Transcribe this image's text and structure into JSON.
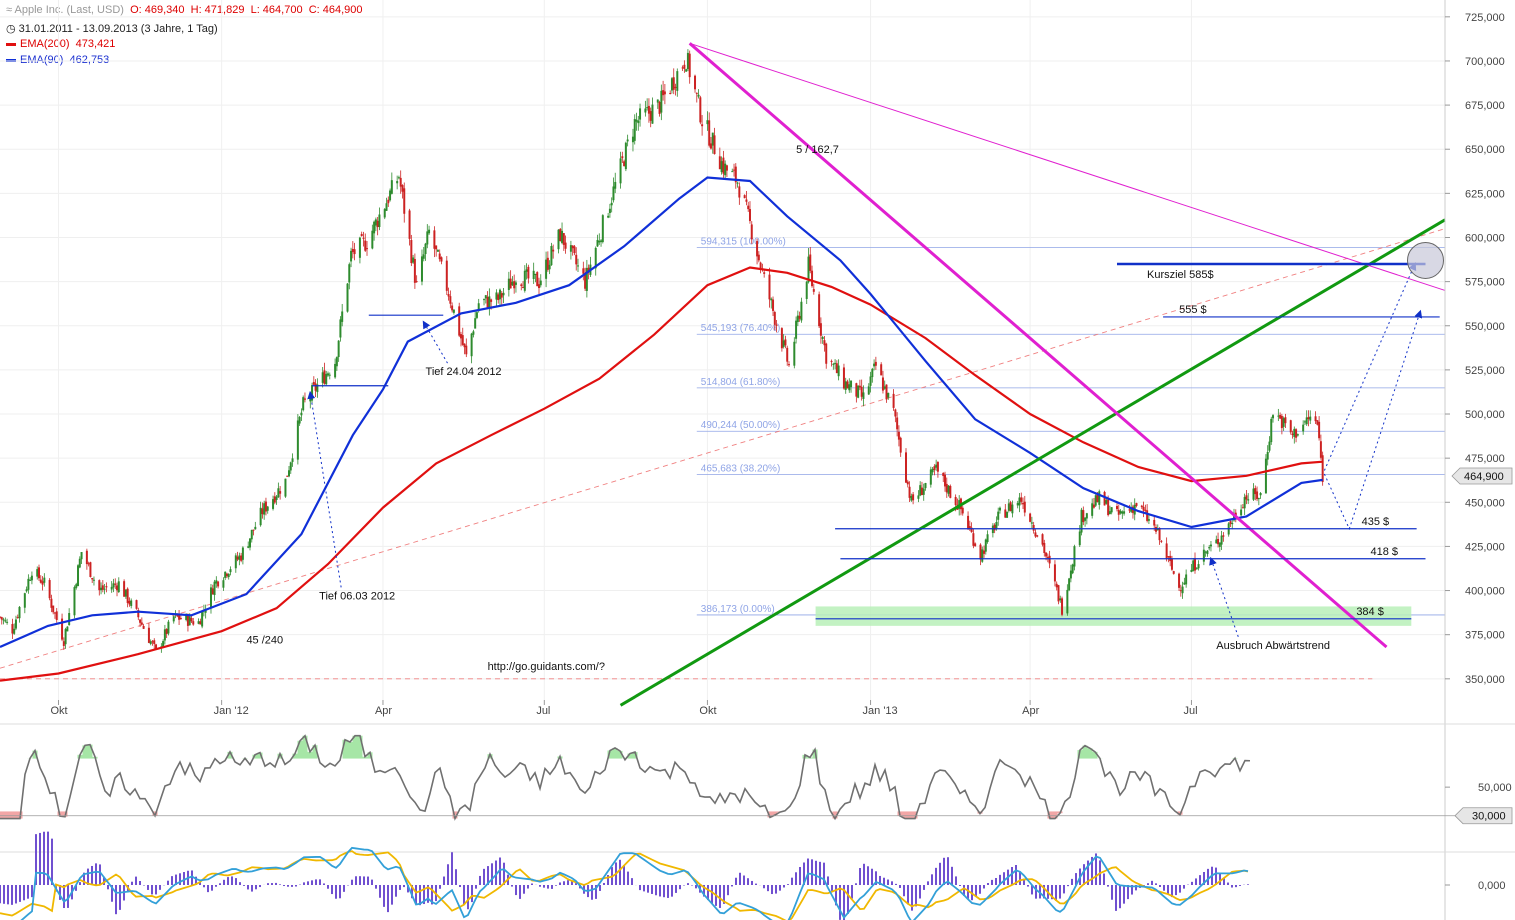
{
  "header": {
    "instrument": "Apple Inc. (Last, USD)",
    "open": "O: 469,340",
    "high": "H: 471,829",
    "low": "L: 464,700",
    "close": "C: 464,900",
    "period": "31.01.2011 - 13.09.2013 (3 Jahre, 1 Tag)",
    "ema200_label": "EMA(200)",
    "ema200_value": "473,421",
    "ema90_label": "EMA(90)",
    "ema90_value": "462,753"
  },
  "colors": {
    "candle_up": "#2e8b2e",
    "candle_down": "#cc2222",
    "ema200": "#e01010",
    "ema90": "#1030d8",
    "trend_green": "#119911",
    "trend_magenta": "#e020d0",
    "fib": "#8fa4e6",
    "target_blue": "#1030c8",
    "oscillator": "#707070",
    "osc_high": "#a6e6a6",
    "osc_low": "#f2a6a6",
    "macd": "#33a0d8",
    "signal": "#f0b800",
    "histogram": "#7050d0"
  },
  "chart_data": {
    "type": "candlestick",
    "x_range": [
      "2011-08-29",
      "2013-11-21"
    ],
    "ylim": [
      338,
      730
    ],
    "y_ticks": [
      {
        "value": 350,
        "label": "350,000"
      },
      {
        "value": 375,
        "label": "375,000"
      },
      {
        "value": 400,
        "label": "400,000"
      },
      {
        "value": 425,
        "label": "425,000"
      },
      {
        "value": 450,
        "label": "450,000"
      },
      {
        "value": 475,
        "label": "475,000"
      },
      {
        "value": 500,
        "label": "500,000"
      },
      {
        "value": 525,
        "label": "525,000"
      },
      {
        "value": 550,
        "label": "550,000"
      },
      {
        "value": 575,
        "label": "575,000"
      },
      {
        "value": 600,
        "label": "600,000"
      },
      {
        "value": 625,
        "label": "625,000"
      },
      {
        "value": 650,
        "label": "650,000"
      },
      {
        "value": 675,
        "label": "675,000"
      },
      {
        "value": 700,
        "label": "700,000"
      },
      {
        "value": 725,
        "label": "725,000"
      }
    ],
    "x_ticks": [
      {
        "date": "2011-10-01",
        "label": "Okt"
      },
      {
        "date": "2012-01-01",
        "label": "Jan '12"
      },
      {
        "date": "2012-04-01",
        "label": "Apr"
      },
      {
        "date": "2012-07-01",
        "label": "Jul"
      },
      {
        "date": "2012-10-01",
        "label": "Okt"
      },
      {
        "date": "2013-01-01",
        "label": "Jan '13"
      },
      {
        "date": "2013-04-01",
        "label": "Apr"
      },
      {
        "date": "2013-07-01",
        "label": "Jul"
      }
    ],
    "last_price": {
      "value": 464.9,
      "label": "464,900"
    },
    "price_path": [
      [
        "2011-08-29",
        385
      ],
      [
        "2011-09-05",
        378
      ],
      [
        "2011-09-16",
        412
      ],
      [
        "2011-09-23",
        404
      ],
      [
        "2011-10-04",
        372
      ],
      [
        "2011-10-14",
        422
      ],
      [
        "2011-10-24",
        400
      ],
      [
        "2011-11-04",
        404
      ],
      [
        "2011-11-15",
        385
      ],
      [
        "2011-11-25",
        365
      ],
      [
        "2011-12-05",
        385
      ],
      [
        "2011-12-19",
        382
      ],
      [
        "2011-12-28",
        404
      ],
      [
        "2012-01-12",
        420
      ],
      [
        "2012-01-24",
        445
      ],
      [
        "2012-02-06",
        462
      ],
      [
        "2012-02-16",
        505
      ],
      [
        "2012-03-05",
        530
      ],
      [
        "2012-03-14",
        590
      ],
      [
        "2012-03-23",
        598
      ],
      [
        "2012-04-10",
        635
      ],
      [
        "2012-04-20",
        572
      ],
      [
        "2012-04-27",
        603
      ],
      [
        "2012-05-08",
        569
      ],
      [
        "2012-05-18",
        532
      ],
      [
        "2012-05-25",
        563
      ],
      [
        "2012-06-05",
        565
      ],
      [
        "2012-06-15",
        578
      ],
      [
        "2012-06-28",
        575
      ],
      [
        "2012-07-10",
        602
      ],
      [
        "2012-07-24",
        575
      ],
      [
        "2012-08-07",
        620
      ],
      [
        "2012-08-21",
        665
      ],
      [
        "2012-09-04",
        675
      ],
      [
        "2012-09-19",
        702
      ],
      [
        "2012-09-28",
        667
      ],
      [
        "2012-10-10",
        640
      ],
      [
        "2012-10-18",
        632
      ],
      [
        "2012-10-26",
        604
      ],
      [
        "2012-11-02",
        576
      ],
      [
        "2012-11-16",
        527
      ],
      [
        "2012-11-27",
        584
      ],
      [
        "2012-12-07",
        533
      ],
      [
        "2012-12-17",
        518
      ],
      [
        "2012-12-28",
        509
      ],
      [
        "2013-01-04",
        527
      ],
      [
        "2013-01-14",
        501
      ],
      [
        "2013-01-24",
        450
      ],
      [
        "2013-02-07",
        468
      ],
      [
        "2013-02-21",
        446
      ],
      [
        "2013-03-04",
        420
      ],
      [
        "2013-03-15",
        443
      ],
      [
        "2013-03-27",
        452
      ],
      [
        "2013-04-08",
        426
      ],
      [
        "2013-04-19",
        390
      ],
      [
        "2013-04-30",
        442
      ],
      [
        "2013-05-10",
        452
      ],
      [
        "2013-05-20",
        442
      ],
      [
        "2013-05-31",
        449
      ],
      [
        "2013-06-11",
        434
      ],
      [
        "2013-06-24",
        402
      ],
      [
        "2013-07-05",
        418
      ],
      [
        "2013-07-15",
        427
      ],
      [
        "2013-07-24",
        440
      ],
      [
        "2013-07-31",
        453
      ],
      [
        "2013-08-09",
        454
      ],
      [
        "2013-08-16",
        502
      ],
      [
        "2013-08-27",
        488
      ],
      [
        "2013-09-06",
        498
      ],
      [
        "2013-09-10",
        494
      ],
      [
        "2013-09-13",
        465
      ]
    ],
    "ema200_path": [
      [
        "2011-08-29",
        349
      ],
      [
        "2011-10-01",
        353
      ],
      [
        "2011-11-15",
        364
      ],
      [
        "2012-01-01",
        377
      ],
      [
        "2012-02-01",
        390
      ],
      [
        "2012-03-01",
        415
      ],
      [
        "2012-04-01",
        447
      ],
      [
        "2012-05-01",
        472
      ],
      [
        "2012-06-01",
        488
      ],
      [
        "2012-07-01",
        503
      ],
      [
        "2012-08-01",
        520
      ],
      [
        "2012-09-01",
        545
      ],
      [
        "2012-10-01",
        573
      ],
      [
        "2012-10-25",
        583
      ],
      [
        "2012-11-15",
        580
      ],
      [
        "2012-12-10",
        572
      ],
      [
        "2013-01-01",
        562
      ],
      [
        "2013-02-01",
        543
      ],
      [
        "2013-03-01",
        522
      ],
      [
        "2013-04-01",
        500
      ],
      [
        "2013-05-01",
        484
      ],
      [
        "2013-06-01",
        470
      ],
      [
        "2013-07-01",
        462
      ],
      [
        "2013-08-01",
        465
      ],
      [
        "2013-09-01",
        472
      ],
      [
        "2013-09-13",
        473
      ]
    ],
    "ema90_path": [
      [
        "2011-08-29",
        368
      ],
      [
        "2011-09-25",
        380
      ],
      [
        "2011-10-20",
        386
      ],
      [
        "2011-11-15",
        388
      ],
      [
        "2011-12-15",
        386
      ],
      [
        "2012-01-15",
        398
      ],
      [
        "2012-02-15",
        432
      ],
      [
        "2012-03-15",
        488
      ],
      [
        "2012-04-01",
        514
      ],
      [
        "2012-04-15",
        541
      ],
      [
        "2012-05-15",
        557
      ],
      [
        "2012-06-15",
        563
      ],
      [
        "2012-07-15",
        573
      ],
      [
        "2012-08-15",
        595
      ],
      [
        "2012-09-15",
        622
      ],
      [
        "2012-10-01",
        634
      ],
      [
        "2012-10-25",
        632
      ],
      [
        "2012-11-15",
        612
      ],
      [
        "2012-12-15",
        587
      ],
      [
        "2013-01-01",
        568
      ],
      [
        "2013-02-01",
        530
      ],
      [
        "2013-03-01",
        497
      ],
      [
        "2013-04-01",
        478
      ],
      [
        "2013-05-01",
        458
      ],
      [
        "2013-06-01",
        445
      ],
      [
        "2013-07-01",
        436
      ],
      [
        "2013-08-01",
        442
      ],
      [
        "2013-09-01",
        461
      ],
      [
        "2013-09-13",
        462.7
      ]
    ],
    "fibonacci_levels": [
      {
        "value": 594.315,
        "label": "594,315 (100.00%)"
      },
      {
        "value": 545.193,
        "label": "545,193 (76.40%)"
      },
      {
        "value": 514.804,
        "label": "514,804 (61.80%)"
      },
      {
        "value": 490.244,
        "label": "490,244 (50.00%)"
      },
      {
        "value": 465.683,
        "label": "465,683 (38.20%)"
      },
      {
        "value": 386.173,
        "label": "386,173 (0.00%)"
      }
    ],
    "horizontal_levels": [
      {
        "value": 585,
        "label": "Kursziel 585$",
        "from": "2013-05-20",
        "to": "2013-11-10"
      },
      {
        "value": 555,
        "label": "555 $",
        "from": "2013-06-15",
        "to": "2013-11-18"
      },
      {
        "value": 435,
        "label": "435 $",
        "from": "2012-12-12",
        "to": "2013-11-05"
      },
      {
        "value": 418,
        "label": "418 $",
        "from": "2012-12-15",
        "to": "2013-11-10"
      },
      {
        "value": 384,
        "label": "384 $",
        "from": "2012-12-01",
        "to": "2013-11-02"
      }
    ],
    "support_lines": [
      {
        "value": 556,
        "from": "2012-03-24",
        "to": "2012-05-05"
      },
      {
        "value": 516,
        "from": "2012-02-21",
        "to": "2012-04-04"
      }
    ],
    "support_zone": {
      "from": "2012-12-01",
      "to": "2013-11-02",
      "low": 380,
      "high": 391
    },
    "trend_lines": [
      {
        "name": "green",
        "from": [
          "2012-08-13",
          335
        ],
        "to": [
          "2013-11-21",
          610
        ]
      },
      {
        "name": "magenta_bold",
        "from": [
          "2012-09-21",
          710
        ],
        "to": [
          "2013-10-19",
          368
        ]
      },
      {
        "name": "magenta_thin",
        "from": [
          "2012-09-21",
          710
        ],
        "to": [
          "2013-11-21",
          570
        ]
      },
      {
        "name": "red_dashed_rising",
        "from": [
          "2011-08-29",
          356
        ],
        "to": [
          "2013-11-21",
          605
        ]
      },
      {
        "name": "red_dashed_flat",
        "from": [
          "2011-08-29",
          350
        ],
        "to": [
          "2013-10-11",
          350
        ]
      }
    ],
    "projection_paths": [
      [
        [
          "2013-09-14",
          466
        ],
        [
          "2013-09-28",
          435
        ],
        [
          "2013-11-07",
          558
        ]
      ],
      [
        [
          "2013-09-14",
          468
        ],
        [
          "2013-11-04",
          585
        ]
      ]
    ],
    "target_circle": {
      "date": "2013-11-10",
      "value": 587
    },
    "annotations": [
      {
        "text": "Tief 06.03 2012",
        "date": "2012-02-25",
        "value": 395,
        "arrow_to": [
          "2012-02-20",
          512
        ]
      },
      {
        "text": "Tief 24.04 2012",
        "date": "2012-04-25",
        "value": 522,
        "arrow_to": [
          "2012-04-24",
          552
        ]
      },
      {
        "text": "5 / 162,7",
        "date": "2012-11-20",
        "value": 648
      },
      {
        "text": "45 /240",
        "date": "2012-01-15",
        "value": 370
      },
      {
        "text": "http://go.guidants.com/?",
        "date": "2012-05-30",
        "value": 355
      },
      {
        "text": "Ausbruch Abwärtstrend",
        "date": "2013-07-15",
        "value": 367,
        "arrow_to": [
          "2013-07-12",
          418
        ]
      }
    ]
  },
  "oscillator": {
    "y_tick": {
      "value": 50,
      "label": "50,000"
    },
    "marker": {
      "value": 30,
      "label": "30,000"
    }
  },
  "macd": {
    "y_tick": {
      "value": 0,
      "label": "0,000"
    }
  }
}
